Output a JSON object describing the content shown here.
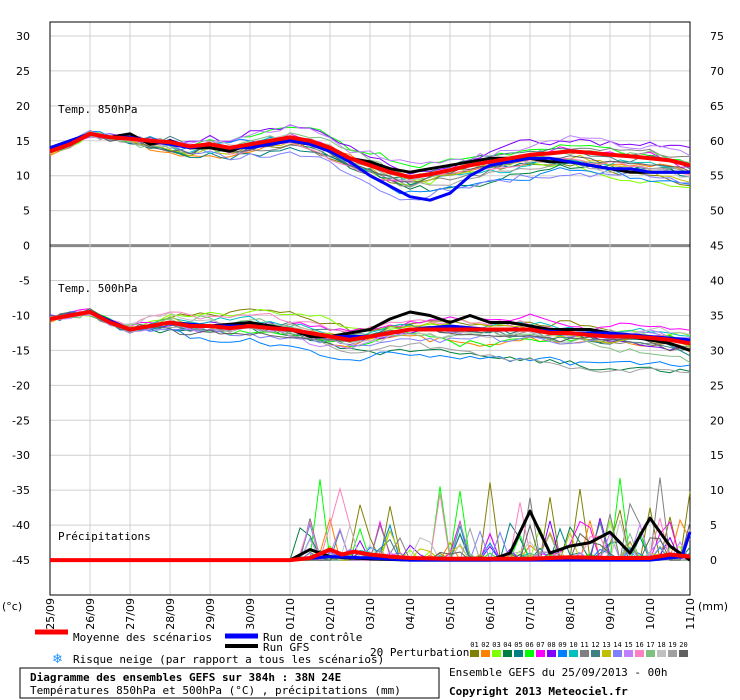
{
  "chart_data": {
    "type": "line",
    "x_labels": [
      "25/09",
      "26/09",
      "27/09",
      "28/09",
      "29/09",
      "30/09",
      "01/10",
      "02/10",
      "03/10",
      "04/10",
      "05/10",
      "06/10",
      "07/10",
      "08/10",
      "09/10",
      "10/10",
      "11/10"
    ],
    "x_label_days": [
      0,
      1,
      2,
      3,
      4,
      5,
      6,
      7,
      8,
      9,
      10,
      11,
      12,
      13,
      14,
      15,
      16
    ],
    "left_axis": {
      "unit": "(°c)",
      "ticks": [
        30,
        25,
        20,
        15,
        10,
        5,
        0,
        -5,
        -10,
        -15,
        -20,
        -25,
        -30,
        -35,
        -40,
        -45
      ],
      "ylim": [
        -50,
        32
      ]
    },
    "right_axis": {
      "unit": "(mm)",
      "ticks": [
        75,
        70,
        65,
        60,
        55,
        50,
        45,
        40,
        35,
        30,
        25,
        20,
        15,
        10,
        5,
        0
      ],
      "ylim": [
        -5,
        77
      ]
    },
    "panel_labels": {
      "t850": "Temp. 850hPa",
      "t500": "Temp. 500hPa",
      "precip": "Précipitations"
    },
    "series": [
      {
        "name": "Moyenne des scénarios",
        "color": "#ff0000",
        "panel": "t850",
        "x": [
          0,
          0.5,
          1,
          1.5,
          2,
          2.5,
          3,
          3.5,
          4,
          4.5,
          5,
          5.5,
          6,
          6.5,
          7,
          7.5,
          8,
          8.5,
          9,
          9.5,
          10,
          10.5,
          11,
          11.5,
          12,
          12.5,
          13,
          13.5,
          14,
          14.5,
          15,
          15.5,
          16
        ],
        "y": [
          13.5,
          14.5,
          16,
          15.5,
          15.3,
          15,
          14.8,
          14.2,
          14.5,
          14,
          14.5,
          15,
          15.5,
          15,
          14,
          12.5,
          11.5,
          10.5,
          9.8,
          10.2,
          10.8,
          11.5,
          12,
          12.5,
          13,
          13.2,
          13.5,
          13.3,
          13,
          12.8,
          12.5,
          12.2,
          11.5
        ]
      },
      {
        "name": "Run de contrôle",
        "color": "#0000ff",
        "panel": "t850",
        "x": [
          0,
          0.5,
          1,
          1.5,
          2,
          2.5,
          3,
          3.5,
          4,
          4.5,
          5,
          5.5,
          6,
          6.5,
          7,
          7.5,
          8,
          8.5,
          9,
          9.5,
          10,
          10.5,
          11,
          11.5,
          12,
          12.5,
          13,
          13.5,
          14,
          14.5,
          15,
          15.5,
          16
        ],
        "y": [
          14,
          15,
          16,
          15.5,
          15.5,
          15,
          14.5,
          14,
          14.5,
          14,
          14,
          14.5,
          15,
          14.5,
          13.5,
          12,
          10,
          8.5,
          7,
          6.5,
          7.5,
          10,
          11.5,
          12,
          12.5,
          12.5,
          12,
          11.5,
          11,
          11,
          10.5,
          10.5,
          10.5
        ]
      },
      {
        "name": "Run GFS",
        "color": "#000000",
        "panel": "t850",
        "x": [
          0,
          0.5,
          1,
          1.5,
          2,
          2.5,
          3,
          3.5,
          4,
          4.5,
          5,
          5.5,
          6,
          6.5,
          7,
          7.5,
          8,
          8.5,
          9,
          9.5,
          10,
          10.5,
          11,
          11.5,
          12,
          12.5,
          13,
          13.5,
          14,
          14.5,
          15,
          15.5,
          16
        ],
        "y": [
          14,
          15,
          16,
          15.5,
          16,
          14.5,
          15,
          14,
          14,
          13.5,
          14.5,
          14.5,
          15,
          14.5,
          14,
          12.5,
          12,
          11,
          10.5,
          11,
          11.5,
          12,
          12.5,
          12.5,
          12.5,
          12,
          12,
          11.5,
          11,
          10.5,
          10.5,
          10.5,
          10.5
        ]
      },
      {
        "name": "Moyenne des scénarios",
        "color": "#ff0000",
        "panel": "t500",
        "x": [
          0,
          0.5,
          1,
          1.5,
          2,
          2.5,
          3,
          3.5,
          4,
          4.5,
          5,
          5.5,
          6,
          6.5,
          7,
          7.5,
          8,
          8.5,
          9,
          9.5,
          10,
          10.5,
          11,
          11.5,
          12,
          12.5,
          13,
          13.5,
          14,
          14.5,
          15,
          15.5,
          16
        ],
        "y": [
          -10.5,
          -10,
          -9.5,
          -11,
          -12,
          -11.5,
          -11,
          -11.5,
          -11.5,
          -11.8,
          -11.5,
          -11.8,
          -12,
          -12.5,
          -13,
          -13.5,
          -13,
          -12.5,
          -12,
          -12,
          -12,
          -12,
          -12,
          -12,
          -12,
          -12.5,
          -12.5,
          -12.8,
          -13,
          -13,
          -13.2,
          -13.5,
          -14
        ]
      },
      {
        "name": "Run de contrôle",
        "color": "#0000ff",
        "panel": "t500",
        "x": [
          0,
          1,
          2,
          3,
          4,
          5,
          6,
          7,
          8,
          9,
          10,
          11,
          12,
          13,
          14,
          15,
          16
        ],
        "y": [
          -10.5,
          -9.5,
          -12,
          -11,
          -11.5,
          -11.5,
          -12,
          -13,
          -13,
          -12,
          -11.5,
          -12,
          -12,
          -12.5,
          -12.5,
          -13,
          -13.5
        ]
      },
      {
        "name": "Run GFS",
        "color": "#000000",
        "panel": "t500",
        "x": [
          0,
          1,
          2,
          3,
          4,
          5,
          6,
          6.5,
          7,
          7.5,
          8,
          8.5,
          9,
          9.5,
          10,
          10.5,
          11,
          11.5,
          12,
          12.5,
          13,
          13.5,
          14,
          14.5,
          15,
          15.5,
          16
        ],
        "y": [
          -10.5,
          -9.5,
          -12,
          -11,
          -11.5,
          -11,
          -12,
          -13,
          -13,
          -12.5,
          -12,
          -10.5,
          -9.5,
          -10,
          -11,
          -10,
          -11,
          -11,
          -11.5,
          -12,
          -12,
          -12,
          -12.5,
          -13,
          -13.5,
          -14,
          -15
        ]
      },
      {
        "name": "Moyenne des scénarios",
        "color": "#ff0000",
        "panel": "precip",
        "x": [
          0,
          3,
          5,
          6,
          6.5,
          7,
          7.3,
          7.6,
          8,
          8.5,
          9,
          10,
          11,
          12,
          13,
          14,
          15,
          15.5,
          16
        ],
        "y": [
          0,
          0,
          0,
          0,
          0.3,
          1.5,
          0.8,
          1.2,
          0.8,
          0.5,
          0.3,
          0.2,
          0.2,
          0.2,
          0.4,
          0.3,
          0.3,
          0.8,
          0.5
        ]
      },
      {
        "name": "Run de contrôle",
        "color": "#0000ff",
        "panel": "precip",
        "x": [
          0,
          6,
          7,
          8,
          9,
          10,
          11,
          12,
          13,
          14,
          15,
          15.8,
          16
        ],
        "y": [
          0,
          0,
          0.5,
          0.3,
          0,
          0,
          0,
          0,
          0,
          0,
          0,
          0.5,
          4
        ]
      },
      {
        "name": "Run GFS",
        "color": "#000000",
        "panel": "precip",
        "x": [
          0,
          6,
          6.5,
          7,
          7.5,
          8,
          9,
          10,
          11,
          11.5,
          12,
          12.5,
          13,
          13.5,
          14,
          14.5,
          15,
          15.5,
          16
        ],
        "y": [
          0,
          0,
          1.5,
          0.5,
          0.3,
          0.2,
          0,
          0,
          0,
          1,
          7,
          1,
          2,
          2.5,
          4,
          1,
          6,
          2,
          0
        ]
      }
    ],
    "perturbation_colors": [
      "#808000",
      "#ff8000",
      "#80ff00",
      "#008040",
      "#008080",
      "#00ff00",
      "#ff00ff",
      "#8000ff",
      "#0080ff",
      "#00c0c0",
      "#808080",
      "#408080",
      "#c0c000",
      "#8080ff",
      "#c080ff",
      "#ff80c0",
      "#80c080",
      "#c0c0c0",
      "#a0a0a0",
      "#606060"
    ]
  },
  "legend": {
    "mean": "Moyenne des scénarios",
    "control": "Run de contrôle",
    "gfs": "Run GFS",
    "snow": "Risque neige (par rapport a tous les scénarios)",
    "perturbations": "20 Perturbations",
    "perturbation_numbers": [
      "01",
      "02",
      "03",
      "04",
      "05",
      "06",
      "07",
      "08",
      "09",
      "10",
      "11",
      "12",
      "13",
      "14",
      "15",
      "16",
      "17",
      "18",
      "19",
      "20"
    ]
  },
  "footer": {
    "title": "Diagramme des ensembles GEFS sur 384h : 38N 24E",
    "subtitle": "Températures 850hPa et 500hPa (°C) , précipitations (mm)",
    "run": "Ensemble GEFS du 25/09/2013 - 00h",
    "copyright": "Copyright 2013 Meteociel.fr"
  }
}
